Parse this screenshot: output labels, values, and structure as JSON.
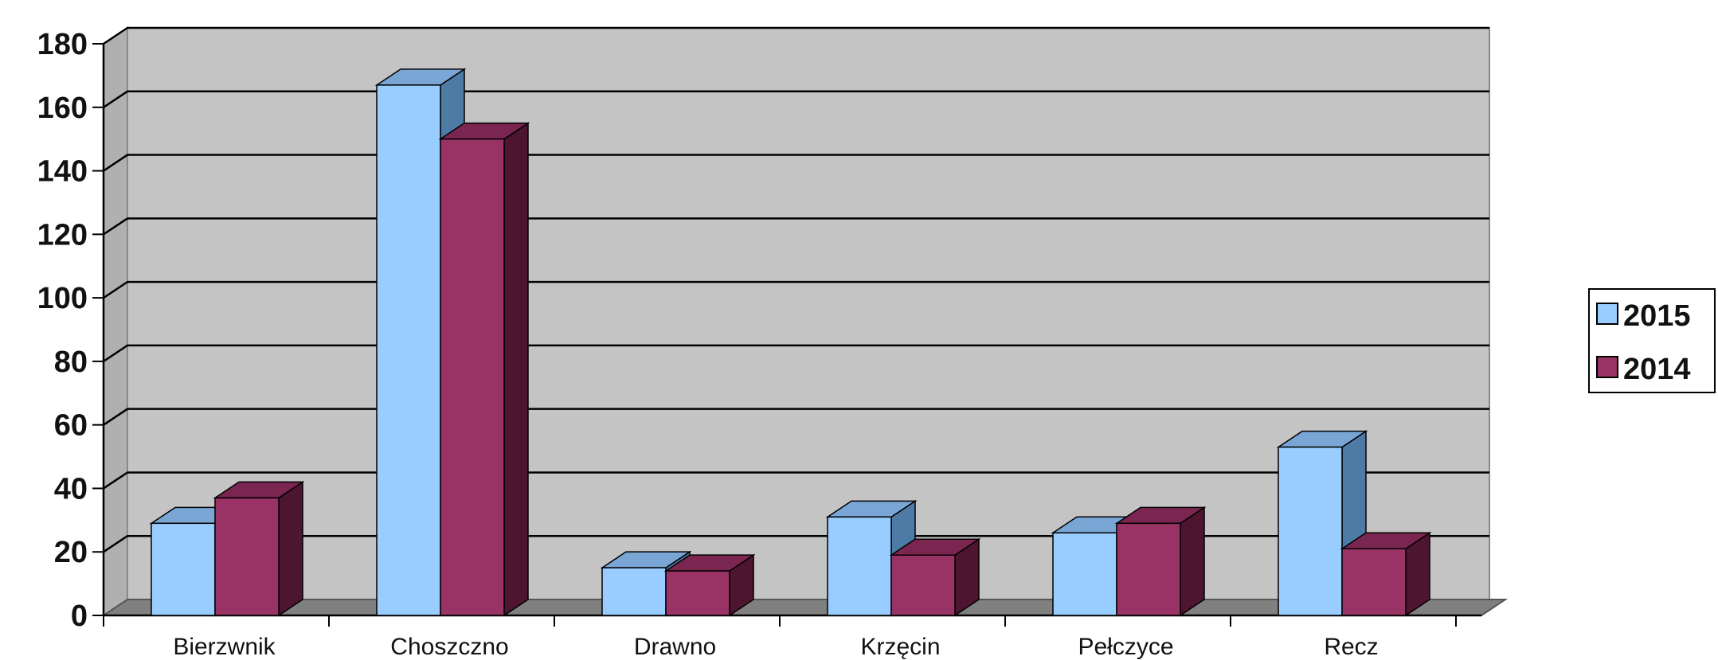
{
  "chart_data": {
    "type": "bar",
    "categories": [
      "Bierzwnik",
      "Choszczno",
      "Drawno",
      "Krzęcin",
      "Pełczyce",
      "Recz"
    ],
    "series": [
      {
        "name": "2015",
        "values": [
          29,
          167,
          15,
          31,
          26,
          53
        ]
      },
      {
        "name": "2014",
        "values": [
          37,
          150,
          14,
          19,
          29,
          21
        ]
      }
    ],
    "ylim": [
      0,
      180
    ],
    "yticks": [
      0,
      20,
      40,
      60,
      80,
      100,
      120,
      140,
      160,
      180
    ],
    "grid": true,
    "legend": "right",
    "title": "",
    "xlabel": "",
    "ylabel": ""
  },
  "colors": {
    "series_2015_front": "#99ccff",
    "series_2015_top": "#7aa6d6",
    "series_2015_side": "#4e7aa6",
    "series_2014_front": "#993366",
    "series_2014_top": "#7a2650",
    "series_2014_side": "#4d1530",
    "wall": "#c4c4c4",
    "floor": "#808080",
    "gridline": "#000000"
  }
}
